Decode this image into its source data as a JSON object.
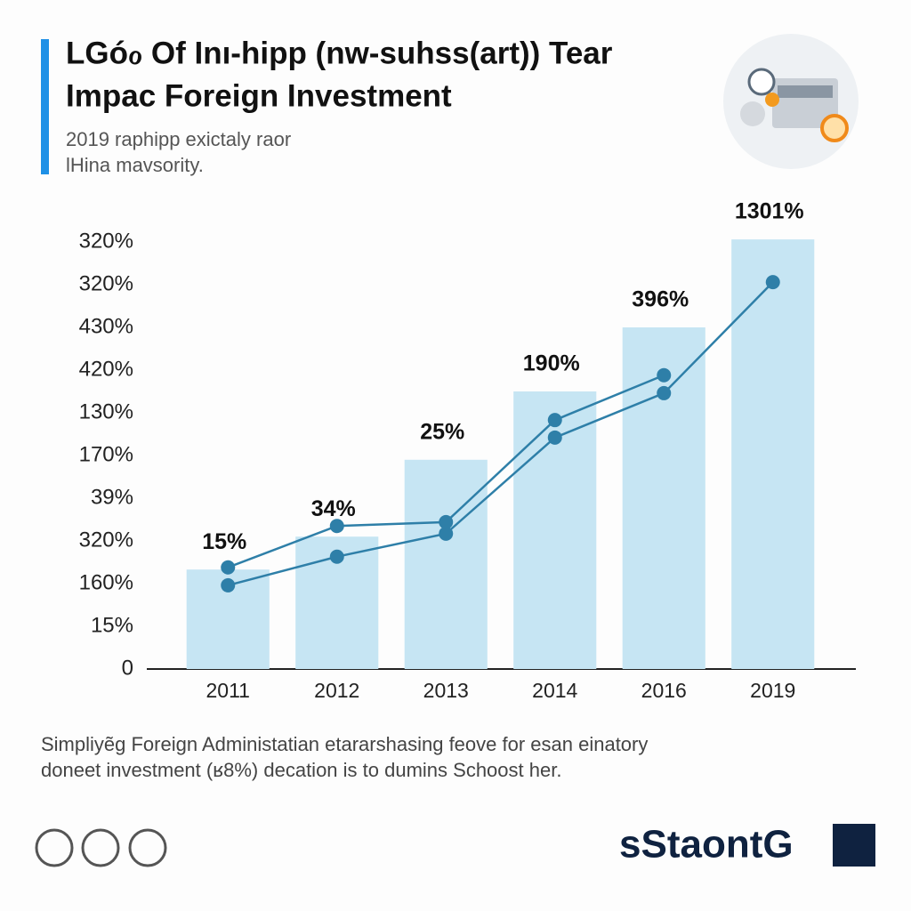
{
  "header": {
    "title_lines": [
      "LGóℴ Of Inı-hipp (nw-suhss(art)) Tear",
      "Impac Foreign Investment"
    ],
    "subtitle_lines": [
      "2019 raphipp exictaly raor",
      "lHina mavsority."
    ]
  },
  "chart_data": {
    "type": "bar",
    "categories": [
      "2011",
      "2012",
      "2013",
      "2014",
      "2016",
      "2019"
    ],
    "values": [
      2.33,
      3.1,
      4.9,
      6.5,
      8.0,
      10.06
    ],
    "bar_labels": [
      "15%",
      "34%",
      "25%",
      "190%",
      "396%",
      "1301%"
    ],
    "color": "#c6e5f3",
    "series": [
      {
        "color": "#2e7fa8",
        "values": [
          1.96,
          2.63,
          3.17,
          5.42,
          6.46,
          9.06
        ]
      },
      {
        "color": "#2e7fa8",
        "values": [
          2.38,
          3.35,
          3.44,
          5.83,
          6.88,
          null
        ]
      }
    ],
    "ylim": [
      0,
      10
    ],
    "yticks": [
      0,
      {
        "value": 1,
        "label": "15%"
      },
      {
        "value": 2,
        "label": "160%"
      },
      {
        "value": 3,
        "label": "320%"
      },
      {
        "value": 4,
        "label": "39%"
      },
      {
        "value": 5,
        "label": "170%"
      },
      {
        "value": 6,
        "label": "130%"
      },
      {
        "value": 7,
        "label": "420%"
      },
      {
        "value": 8,
        "label": "430%"
      },
      {
        "value": 9,
        "label": "320%"
      },
      {
        "value": 10,
        "label": "320%"
      }
    ]
  },
  "footer": {
    "caption_lines": [
      "Simpliyẽg Foreign Administatian  etararshasing feove for esan einatory",
      "doneet investment (ʁ8%) decation is to dumins Schoost her."
    ],
    "brand": "sStaontG"
  }
}
